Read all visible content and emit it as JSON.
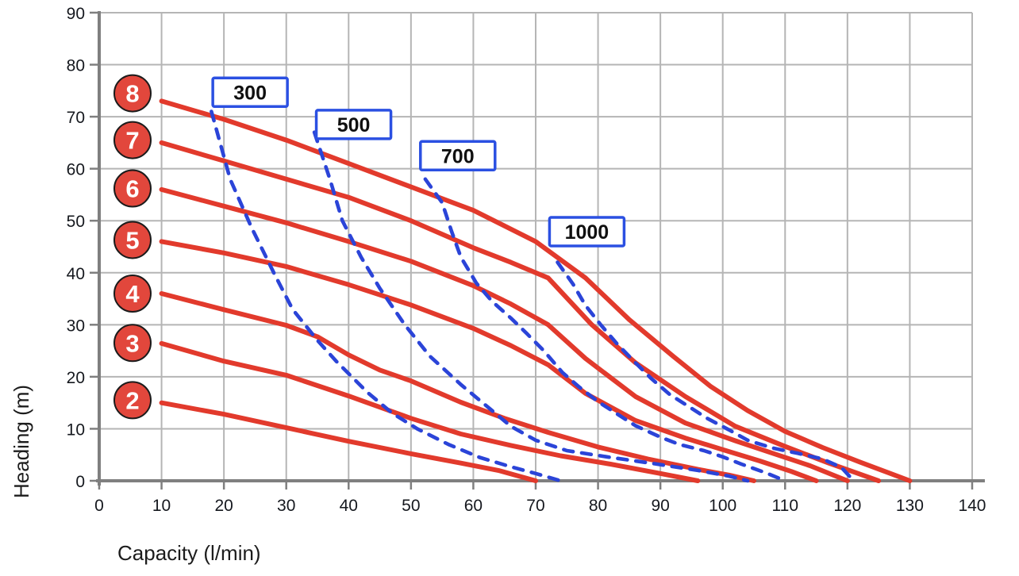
{
  "chart_data": {
    "type": "line",
    "title": "",
    "xlabel": "Capacity (l/min)",
    "ylabel": "Heading (m)",
    "xlim": [
      0,
      140
    ],
    "ylim": [
      0,
      90
    ],
    "xticks": [
      0,
      10,
      20,
      30,
      40,
      50,
      60,
      70,
      80,
      90,
      100,
      110,
      120,
      130,
      140
    ],
    "yticks": [
      0,
      10,
      20,
      30,
      40,
      50,
      60,
      70,
      80,
      90
    ],
    "grid": true,
    "legend_position": "none",
    "colors": {
      "pump_red": "#e23a2c",
      "badge_fill": "#e2473c",
      "badge_text": "#ffffff",
      "power_blue": "#2b44d8",
      "box_border": "#2b50e2",
      "grid_gray": "#b5b5b5",
      "axis_gray": "#7f7f7f"
    },
    "pump_curves": [
      {
        "label": "2",
        "badge_heading": 15.5,
        "points": [
          [
            10,
            15
          ],
          [
            20,
            12.8
          ],
          [
            30,
            10.2
          ],
          [
            40,
            7.6
          ],
          [
            50,
            5.2
          ],
          [
            58,
            3.4
          ],
          [
            64,
            2
          ],
          [
            70,
            0
          ]
        ]
      },
      {
        "label": "3",
        "badge_heading": 26.5,
        "points": [
          [
            10,
            26.4
          ],
          [
            20,
            23
          ],
          [
            30,
            20.3
          ],
          [
            40,
            16.3
          ],
          [
            50,
            12
          ],
          [
            58,
            9
          ],
          [
            66,
            6.8
          ],
          [
            74,
            4.8
          ],
          [
            82,
            3.2
          ],
          [
            90,
            1.4
          ],
          [
            96,
            0
          ]
        ]
      },
      {
        "label": "4",
        "badge_heading": 36,
        "points": [
          [
            10,
            36
          ],
          [
            20,
            32.9
          ],
          [
            30,
            29.9
          ],
          [
            35,
            27.7
          ],
          [
            40,
            24.2
          ],
          [
            45,
            21.3
          ],
          [
            50,
            19.2
          ],
          [
            58,
            15.1
          ],
          [
            65,
            12
          ],
          [
            72,
            9.3
          ],
          [
            80,
            6.5
          ],
          [
            88,
            4.2
          ],
          [
            96,
            2.2
          ],
          [
            101,
            1.1
          ],
          [
            105,
            0
          ]
        ]
      },
      {
        "label": "5",
        "badge_heading": 46.3,
        "points": [
          [
            10,
            46
          ],
          [
            20,
            43.8
          ],
          [
            30,
            41.2
          ],
          [
            40,
            37.7
          ],
          [
            50,
            33.8
          ],
          [
            60,
            29.3
          ],
          [
            66,
            26
          ],
          [
            72,
            22.3
          ],
          [
            78,
            16.8
          ],
          [
            86,
            11.6
          ],
          [
            94,
            8.2
          ],
          [
            100,
            6
          ],
          [
            106,
            3.8
          ],
          [
            111,
            1.8
          ],
          [
            115,
            0
          ]
        ]
      },
      {
        "label": "6",
        "badge_heading": 56.2,
        "points": [
          [
            10,
            56
          ],
          [
            20,
            52.8
          ],
          [
            30,
            49.6
          ],
          [
            40,
            46
          ],
          [
            50,
            42.2
          ],
          [
            60,
            37.5
          ],
          [
            66,
            34
          ],
          [
            72,
            30
          ],
          [
            78,
            23.5
          ],
          [
            86,
            16.2
          ],
          [
            94,
            11.1
          ],
          [
            102,
            7.7
          ],
          [
            108,
            5.3
          ],
          [
            114,
            2.9
          ],
          [
            120,
            0
          ]
        ]
      },
      {
        "label": "7",
        "badge_heading": 65.5,
        "points": [
          [
            10,
            65
          ],
          [
            20,
            61.5
          ],
          [
            30,
            58
          ],
          [
            40,
            54.5
          ],
          [
            50,
            50
          ],
          [
            60,
            44.8
          ],
          [
            66,
            42
          ],
          [
            72,
            39
          ],
          [
            79,
            30
          ],
          [
            86,
            22.7
          ],
          [
            94,
            16.2
          ],
          [
            102,
            10.5
          ],
          [
            110,
            6.6
          ],
          [
            117,
            3.4
          ],
          [
            121.5,
            1.5
          ],
          [
            125,
            0
          ]
        ]
      },
      {
        "label": "8",
        "badge_heading": 74.5,
        "points": [
          [
            10,
            73
          ],
          [
            20,
            69.5
          ],
          [
            30,
            65.5
          ],
          [
            40,
            61
          ],
          [
            50,
            56.5
          ],
          [
            60,
            52
          ],
          [
            70,
            46
          ],
          [
            78,
            39
          ],
          [
            85,
            31
          ],
          [
            92,
            24
          ],
          [
            98,
            18.2
          ],
          [
            104,
            13.5
          ],
          [
            110,
            9.5
          ],
          [
            116,
            6.4
          ],
          [
            122,
            3.6
          ],
          [
            126,
            1.8
          ],
          [
            130,
            0
          ]
        ]
      }
    ],
    "power_curves": [
      {
        "label": "300",
        "label_anchor": [
          24.2,
          74.7
        ],
        "points": [
          [
            18,
            71
          ],
          [
            21,
            58
          ],
          [
            24.5,
            48.5
          ],
          [
            28,
            40
          ],
          [
            31,
            33
          ],
          [
            35,
            27
          ],
          [
            38,
            23
          ],
          [
            43,
            17
          ],
          [
            47,
            13
          ],
          [
            51,
            10
          ],
          [
            56,
            7
          ],
          [
            61,
            4.5
          ],
          [
            66,
            2.7
          ],
          [
            70,
            1.4
          ],
          [
            74,
            0
          ]
        ]
      },
      {
        "label": "500",
        "label_anchor": [
          40.8,
          68.5
        ],
        "points": [
          [
            34.5,
            67
          ],
          [
            37,
            58
          ],
          [
            39,
            50
          ],
          [
            42,
            43
          ],
          [
            45,
            37
          ],
          [
            49,
            30
          ],
          [
            53,
            24
          ],
          [
            58,
            18.5
          ],
          [
            62,
            14.5
          ],
          [
            66,
            10.5
          ],
          [
            70,
            7.8
          ],
          [
            75,
            5.8
          ],
          [
            82,
            4.5
          ],
          [
            89,
            3.3
          ],
          [
            96,
            2
          ],
          [
            101,
            0.9
          ],
          [
            104,
            0
          ]
        ]
      },
      {
        "label": "700",
        "label_anchor": [
          57.5,
          62.5
        ],
        "points": [
          [
            52.3,
            58
          ],
          [
            55,
            53.5
          ],
          [
            56.5,
            48
          ],
          [
            58,
            43
          ],
          [
            60.5,
            38
          ],
          [
            63,
            34.5
          ],
          [
            66,
            31.3
          ],
          [
            68.5,
            28.4
          ],
          [
            71.3,
            25
          ],
          [
            74.3,
            20.8
          ],
          [
            77,
            18
          ],
          [
            80,
            15.2
          ],
          [
            83,
            12.9
          ],
          [
            86,
            10.6
          ],
          [
            90,
            8.4
          ],
          [
            93,
            7
          ],
          [
            97,
            5.8
          ],
          [
            100,
            4.6
          ],
          [
            103,
            3.2
          ],
          [
            107,
            1.5
          ],
          [
            110,
            0
          ]
        ]
      },
      {
        "label": "1000",
        "label_anchor": [
          78.2,
          47.9
        ],
        "points": [
          [
            73.5,
            42
          ],
          [
            76,
            37.8
          ],
          [
            78,
            33.7
          ],
          [
            80.5,
            29.9
          ],
          [
            83,
            26.4
          ],
          [
            86,
            22.7
          ],
          [
            88.5,
            19.7
          ],
          [
            91.5,
            16.6
          ],
          [
            94.5,
            14.3
          ],
          [
            97.5,
            12
          ],
          [
            101,
            9.8
          ],
          [
            104,
            7.8
          ],
          [
            108,
            6.3
          ],
          [
            112,
            5.3
          ],
          [
            116,
            4.2
          ],
          [
            119,
            2.6
          ],
          [
            121,
            0
          ]
        ]
      }
    ]
  }
}
